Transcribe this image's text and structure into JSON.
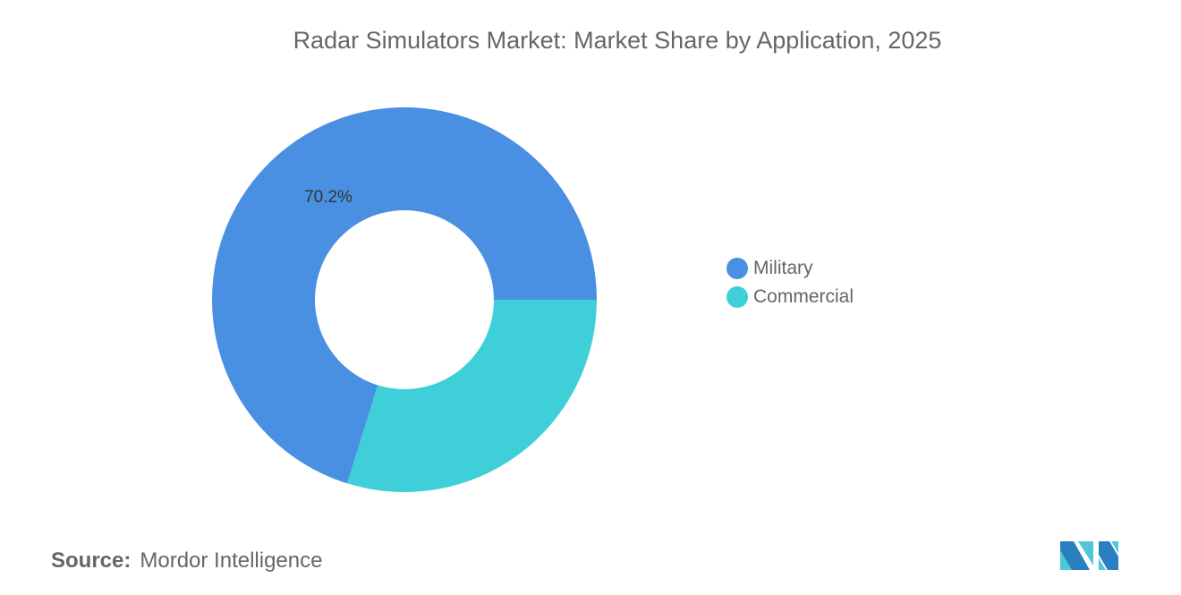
{
  "chart_data": {
    "type": "pie",
    "title": "Radar Simulators Market: Market Share by Application, 2025",
    "categories": [
      "Military",
      "Commercial"
    ],
    "values": [
      70.2,
      29.8
    ],
    "data_labels": [
      "70.2%",
      ""
    ],
    "colors": [
      "#4a90e2",
      "#3ecfd9"
    ],
    "donut": true,
    "legend_position": "right"
  },
  "source": {
    "label": "Source:",
    "value": "Mordor Intelligence"
  }
}
